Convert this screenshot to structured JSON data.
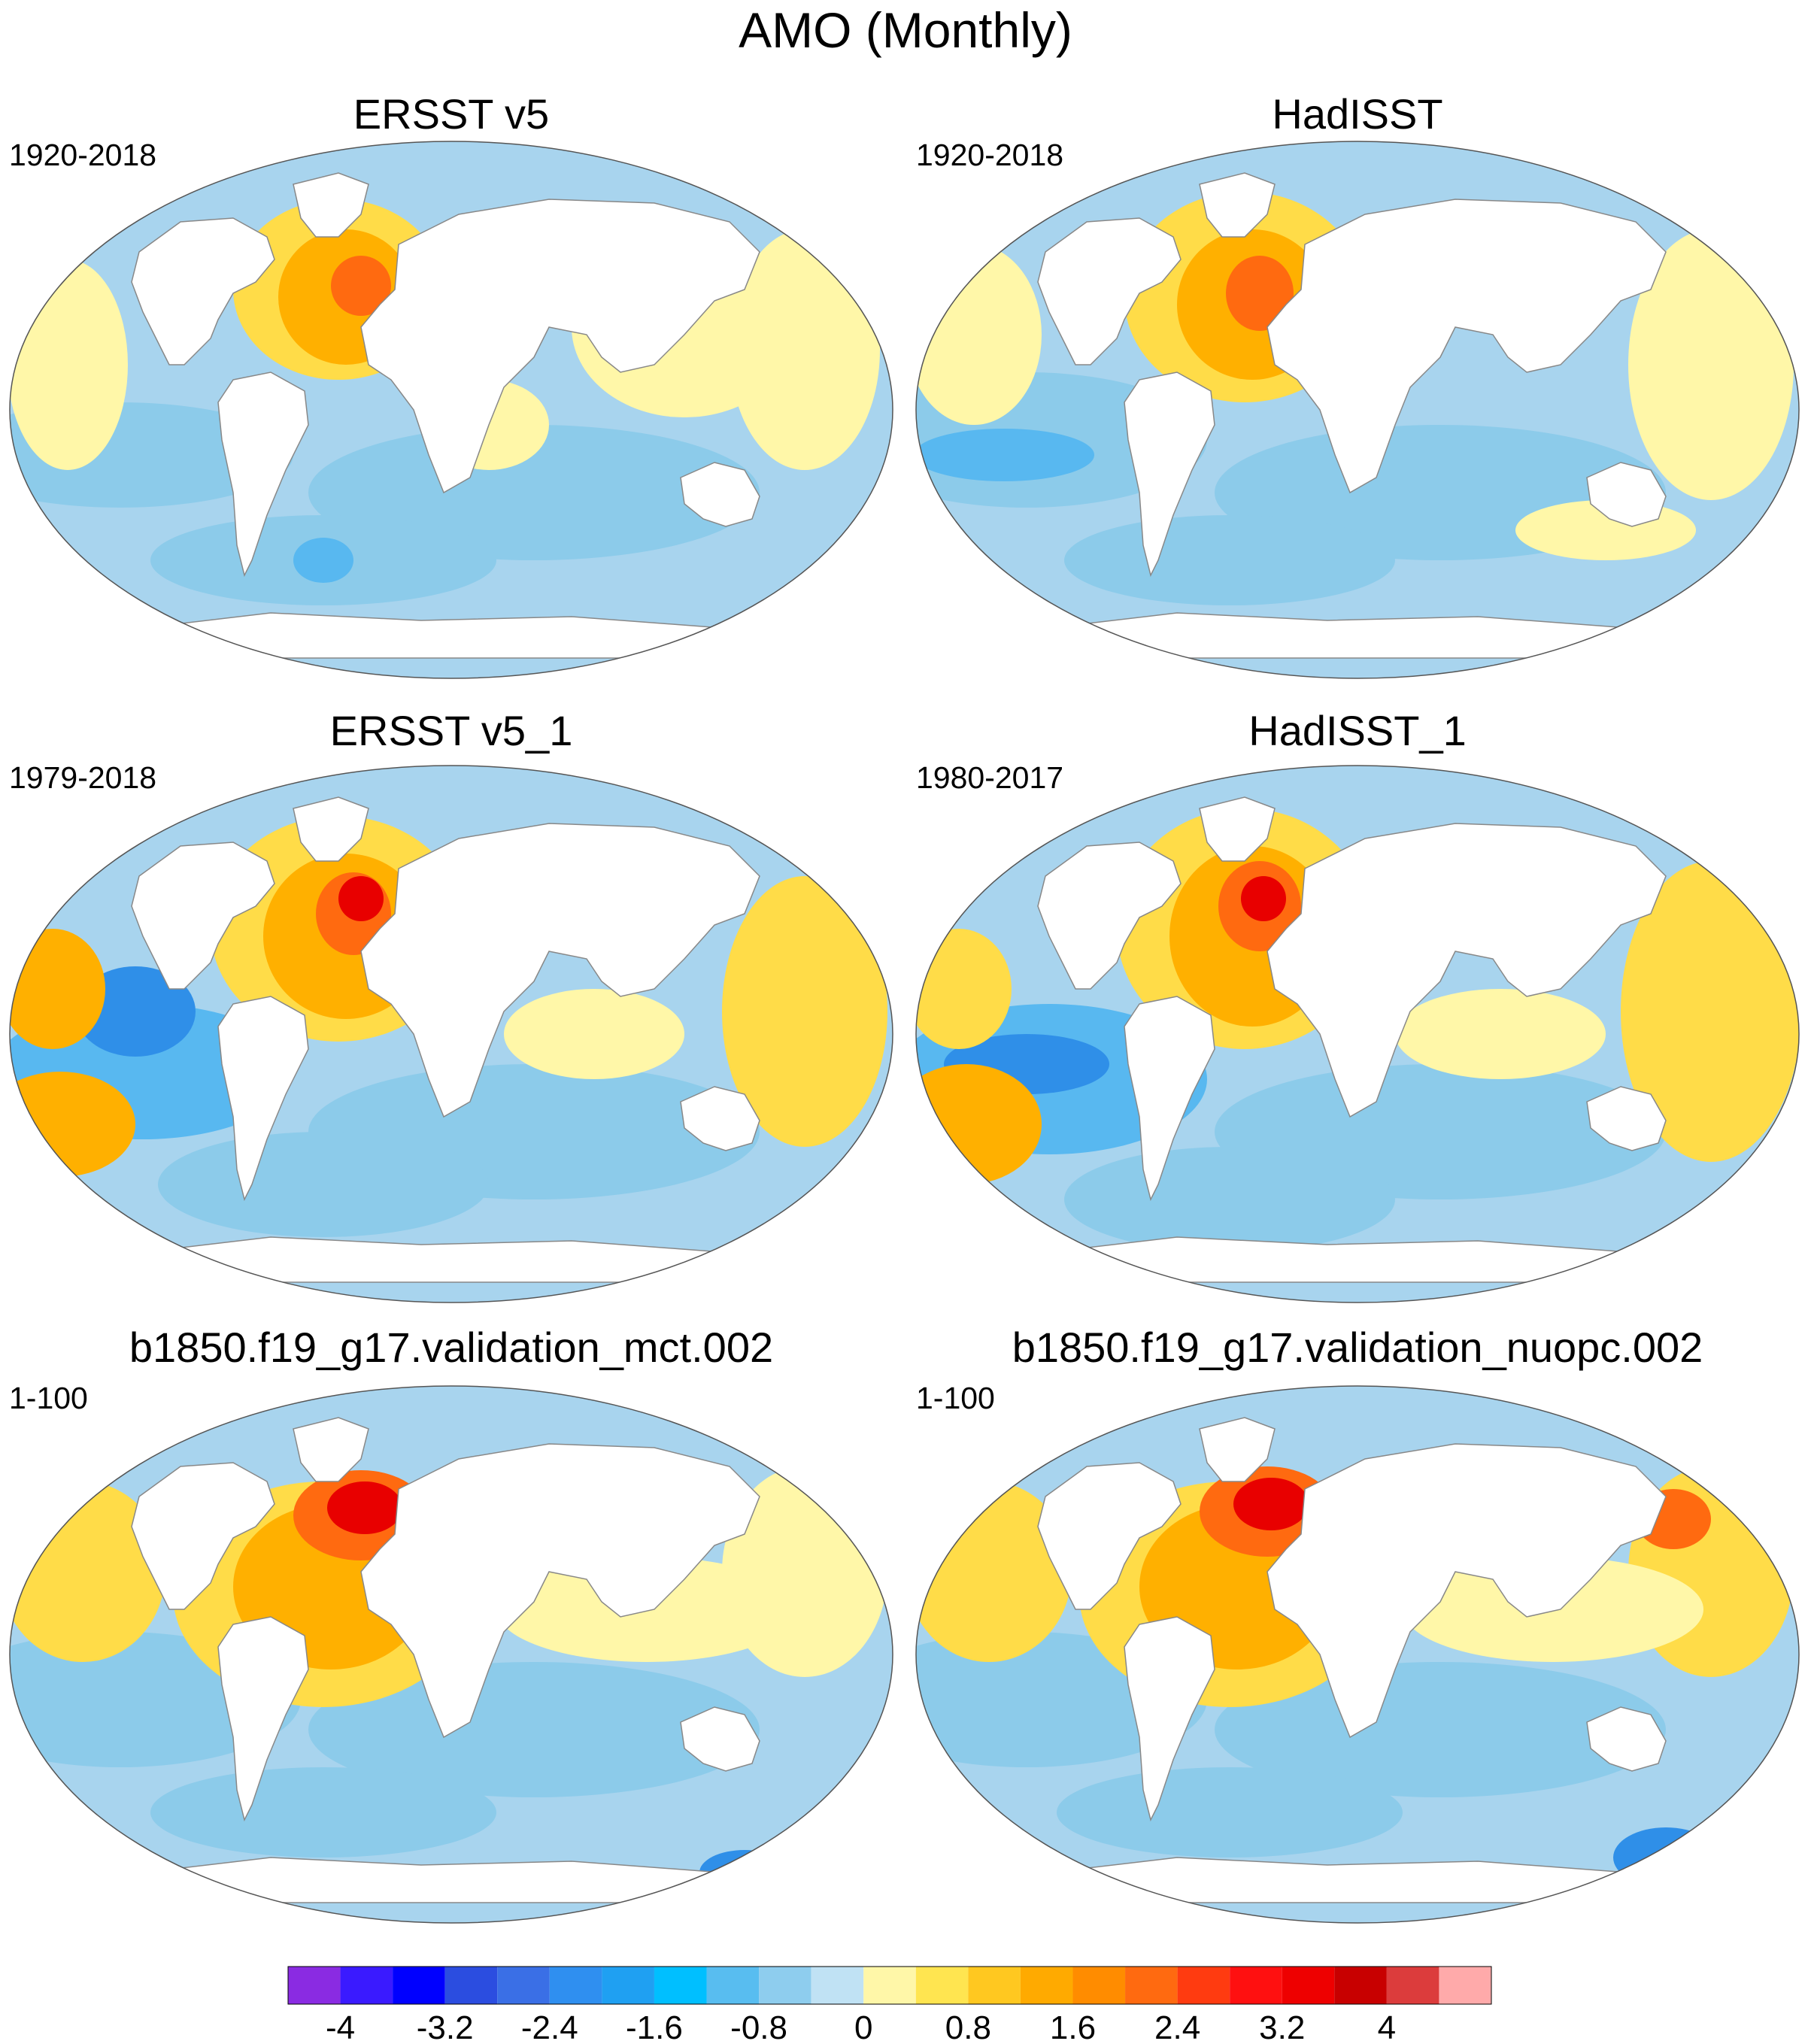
{
  "title": "AMO (Monthly)",
  "colors": {
    "ocean_neg": "#a8d4ee",
    "ocean_neg2": "#8ccbea",
    "ocean_neg3": "#58b8f0",
    "ocean_neg4": "#2f8fe8",
    "ocean_pos": "#fff7a8",
    "ocean_pos2": "#ffdc48",
    "ocean_pos3": "#ffb000",
    "ocean_pos4": "#ff6a10",
    "ocean_pos5": "#e80000",
    "land": "#ffffff",
    "coast": "#888888"
  },
  "panels": [
    {
      "title": "ERSST v5",
      "period": "1920-2018"
    },
    {
      "title": "HadISST",
      "period": "1920-2018"
    },
    {
      "title": "ERSST v5_1",
      "period": "1979-2018"
    },
    {
      "title": "HadISST_1",
      "period": "1980-2017"
    },
    {
      "title": "b1850.f19_g17.validation_mct.002",
      "period": "1-100"
    },
    {
      "title": "b1850.f19_g17.validation_nuopc.002",
      "period": "1-100"
    }
  ],
  "colorbar": {
    "colors": [
      "#8a2be2",
      "#3a1aff",
      "#0000ff",
      "#2b4de0",
      "#3a6fe6",
      "#2f8ff0",
      "#1fa0f2",
      "#00bfff",
      "#58bdf0",
      "#8ecdee",
      "#c0e2f4",
      "#fff7a8",
      "#ffe550",
      "#ffc820",
      "#ffaa00",
      "#ff8c00",
      "#ff6a10",
      "#ff3b10",
      "#ff1010",
      "#ee0000",
      "#c80000",
      "#dc3c3c",
      "#ffaaaa"
    ],
    "tick_labels": [
      "-4",
      "-3.2",
      "-2.4",
      "-1.6",
      "-0.8",
      "0",
      "0.8",
      "1.6",
      "2.4",
      "3.2",
      "4"
    ]
  }
}
